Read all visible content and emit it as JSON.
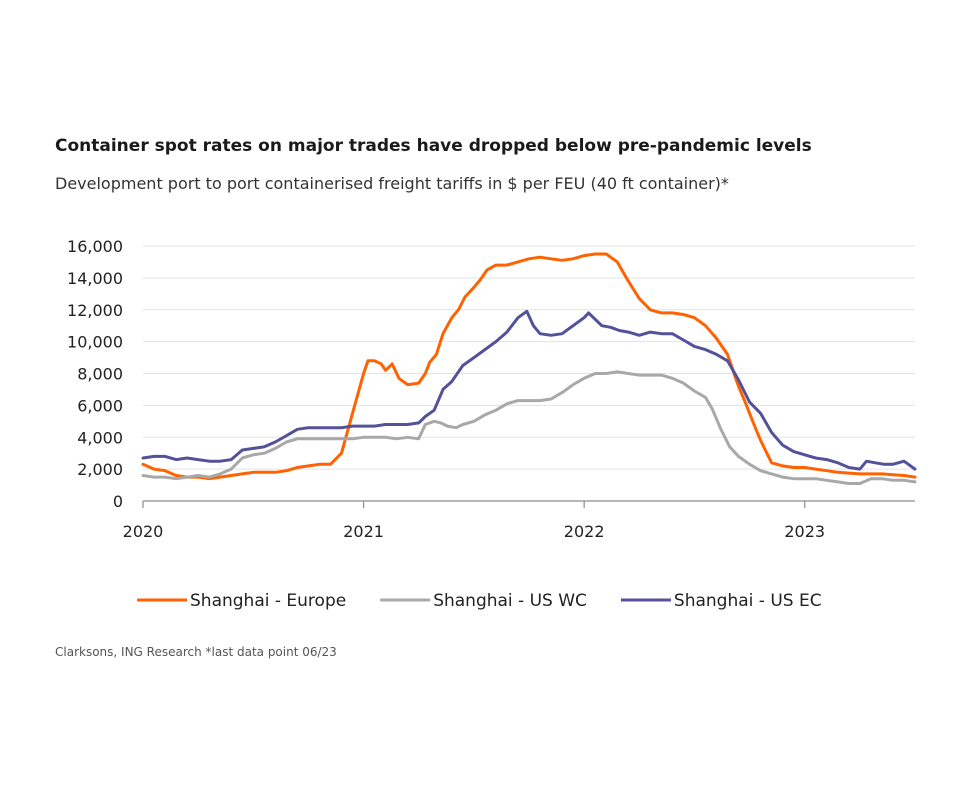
{
  "chart_data": {
    "type": "line",
    "title": "Container spot rates on major trades have dropped below pre-pandemic levels",
    "subtitle": "Development port to port containerised freight tariffs in $ per FEU (40 ft container)*",
    "source": "Clarksons, ING Research *last data point 06/23",
    "xlabel": "",
    "ylabel": "",
    "xlim": [
      2020.0,
      2023.5
    ],
    "ylim": [
      0,
      16000
    ],
    "x_ticks": [
      2020,
      2021,
      2022,
      2023
    ],
    "y_ticks": [
      0,
      2000,
      4000,
      6000,
      8000,
      10000,
      12000,
      14000,
      16000
    ],
    "y_tick_labels": [
      "0",
      "2,000",
      "4,000",
      "6,000",
      "8,000",
      "10,000",
      "12,000",
      "14,000",
      "16,000"
    ],
    "grid": "horizontal",
    "legend_position": "bottom",
    "series": [
      {
        "name": "Shanghai - Europe",
        "color": "#ff6200",
        "points": [
          [
            2020.0,
            2300
          ],
          [
            2020.05,
            2000
          ],
          [
            2020.1,
            1900
          ],
          [
            2020.15,
            1600
          ],
          [
            2020.2,
            1500
          ],
          [
            2020.25,
            1500
          ],
          [
            2020.3,
            1400
          ],
          [
            2020.35,
            1500
          ],
          [
            2020.4,
            1600
          ],
          [
            2020.45,
            1700
          ],
          [
            2020.5,
            1800
          ],
          [
            2020.55,
            1800
          ],
          [
            2020.6,
            1800
          ],
          [
            2020.65,
            1900
          ],
          [
            2020.7,
            2100
          ],
          [
            2020.75,
            2200
          ],
          [
            2020.8,
            2300
          ],
          [
            2020.85,
            2300
          ],
          [
            2020.9,
            3000
          ],
          [
            2020.93,
            4500
          ],
          [
            2020.96,
            6000
          ],
          [
            2020.98,
            7000
          ],
          [
            2021.0,
            8000
          ],
          [
            2021.02,
            8800
          ],
          [
            2021.05,
            8800
          ],
          [
            2021.08,
            8600
          ],
          [
            2021.1,
            8200
          ],
          [
            2021.13,
            8600
          ],
          [
            2021.16,
            7700
          ],
          [
            2021.2,
            7300
          ],
          [
            2021.25,
            7400
          ],
          [
            2021.28,
            8000
          ],
          [
            2021.3,
            8700
          ],
          [
            2021.33,
            9200
          ],
          [
            2021.36,
            10500
          ],
          [
            2021.4,
            11500
          ],
          [
            2021.43,
            12000
          ],
          [
            2021.46,
            12800
          ],
          [
            2021.5,
            13400
          ],
          [
            2021.53,
            13900
          ],
          [
            2021.56,
            14500
          ],
          [
            2021.6,
            14800
          ],
          [
            2021.65,
            14800
          ],
          [
            2021.7,
            15000
          ],
          [
            2021.75,
            15200
          ],
          [
            2021.8,
            15300
          ],
          [
            2021.85,
            15200
          ],
          [
            2021.9,
            15100
          ],
          [
            2021.95,
            15200
          ],
          [
            2022.0,
            15400
          ],
          [
            2022.05,
            15500
          ],
          [
            2022.1,
            15500
          ],
          [
            2022.15,
            15000
          ],
          [
            2022.2,
            13800
          ],
          [
            2022.25,
            12700
          ],
          [
            2022.3,
            12000
          ],
          [
            2022.35,
            11800
          ],
          [
            2022.4,
            11800
          ],
          [
            2022.45,
            11700
          ],
          [
            2022.5,
            11500
          ],
          [
            2022.55,
            11000
          ],
          [
            2022.6,
            10200
          ],
          [
            2022.65,
            9200
          ],
          [
            2022.7,
            7200
          ],
          [
            2022.73,
            6200
          ],
          [
            2022.77,
            4800
          ],
          [
            2022.8,
            3800
          ],
          [
            2022.85,
            2400
          ],
          [
            2022.9,
            2200
          ],
          [
            2022.95,
            2100
          ],
          [
            2023.0,
            2100
          ],
          [
            2023.05,
            2000
          ],
          [
            2023.1,
            1900
          ],
          [
            2023.15,
            1800
          ],
          [
            2023.2,
            1750
          ],
          [
            2023.25,
            1700
          ],
          [
            2023.3,
            1700
          ],
          [
            2023.35,
            1700
          ],
          [
            2023.4,
            1650
          ],
          [
            2023.45,
            1600
          ],
          [
            2023.5,
            1500
          ]
        ]
      },
      {
        "name": "Shanghai - US WC",
        "color": "#a8a8a8",
        "points": [
          [
            2020.0,
            1600
          ],
          [
            2020.05,
            1500
          ],
          [
            2020.1,
            1500
          ],
          [
            2020.15,
            1400
          ],
          [
            2020.2,
            1500
          ],
          [
            2020.25,
            1600
          ],
          [
            2020.3,
            1500
          ],
          [
            2020.35,
            1700
          ],
          [
            2020.4,
            2000
          ],
          [
            2020.45,
            2700
          ],
          [
            2020.5,
            2900
          ],
          [
            2020.55,
            3000
          ],
          [
            2020.6,
            3300
          ],
          [
            2020.65,
            3700
          ],
          [
            2020.7,
            3900
          ],
          [
            2020.75,
            3900
          ],
          [
            2020.8,
            3900
          ],
          [
            2020.85,
            3900
          ],
          [
            2020.9,
            3900
          ],
          [
            2020.95,
            3900
          ],
          [
            2021.0,
            4000
          ],
          [
            2021.05,
            4000
          ],
          [
            2021.1,
            4000
          ],
          [
            2021.15,
            3900
          ],
          [
            2021.2,
            4000
          ],
          [
            2021.25,
            3900
          ],
          [
            2021.28,
            4800
          ],
          [
            2021.32,
            5000
          ],
          [
            2021.35,
            4900
          ],
          [
            2021.38,
            4700
          ],
          [
            2021.42,
            4600
          ],
          [
            2021.45,
            4800
          ],
          [
            2021.5,
            5000
          ],
          [
            2021.55,
            5400
          ],
          [
            2021.6,
            5700
          ],
          [
            2021.65,
            6100
          ],
          [
            2021.7,
            6300
          ],
          [
            2021.75,
            6300
          ],
          [
            2021.8,
            6300
          ],
          [
            2021.85,
            6400
          ],
          [
            2021.9,
            6800
          ],
          [
            2021.95,
            7300
          ],
          [
            2022.0,
            7700
          ],
          [
            2022.05,
            8000
          ],
          [
            2022.1,
            8000
          ],
          [
            2022.15,
            8100
          ],
          [
            2022.2,
            8000
          ],
          [
            2022.25,
            7900
          ],
          [
            2022.3,
            7900
          ],
          [
            2022.35,
            7900
          ],
          [
            2022.4,
            7700
          ],
          [
            2022.45,
            7400
          ],
          [
            2022.5,
            6900
          ],
          [
            2022.55,
            6500
          ],
          [
            2022.58,
            5800
          ],
          [
            2022.62,
            4500
          ],
          [
            2022.66,
            3400
          ],
          [
            2022.7,
            2800
          ],
          [
            2022.75,
            2300
          ],
          [
            2022.8,
            1900
          ],
          [
            2022.85,
            1700
          ],
          [
            2022.9,
            1500
          ],
          [
            2022.95,
            1400
          ],
          [
            2023.0,
            1400
          ],
          [
            2023.05,
            1400
          ],
          [
            2023.1,
            1300
          ],
          [
            2023.15,
            1200
          ],
          [
            2023.2,
            1100
          ],
          [
            2023.25,
            1100
          ],
          [
            2023.3,
            1400
          ],
          [
            2023.35,
            1400
          ],
          [
            2023.4,
            1300
          ],
          [
            2023.45,
            1300
          ],
          [
            2023.5,
            1200
          ]
        ]
      },
      {
        "name": "Shanghai - US EC",
        "color": "#525199",
        "points": [
          [
            2020.0,
            2700
          ],
          [
            2020.05,
            2800
          ],
          [
            2020.1,
            2800
          ],
          [
            2020.15,
            2600
          ],
          [
            2020.2,
            2700
          ],
          [
            2020.25,
            2600
          ],
          [
            2020.3,
            2500
          ],
          [
            2020.35,
            2500
          ],
          [
            2020.4,
            2600
          ],
          [
            2020.45,
            3200
          ],
          [
            2020.5,
            3300
          ],
          [
            2020.55,
            3400
          ],
          [
            2020.6,
            3700
          ],
          [
            2020.65,
            4100
          ],
          [
            2020.7,
            4500
          ],
          [
            2020.75,
            4600
          ],
          [
            2020.8,
            4600
          ],
          [
            2020.85,
            4600
          ],
          [
            2020.9,
            4600
          ],
          [
            2020.95,
            4700
          ],
          [
            2021.0,
            4700
          ],
          [
            2021.05,
            4700
          ],
          [
            2021.1,
            4800
          ],
          [
            2021.15,
            4800
          ],
          [
            2021.2,
            4800
          ],
          [
            2021.25,
            4900
          ],
          [
            2021.28,
            5300
          ],
          [
            2021.32,
            5700
          ],
          [
            2021.36,
            7000
          ],
          [
            2021.4,
            7500
          ],
          [
            2021.45,
            8500
          ],
          [
            2021.5,
            9000
          ],
          [
            2021.55,
            9500
          ],
          [
            2021.6,
            10000
          ],
          [
            2021.65,
            10600
          ],
          [
            2021.7,
            11500
          ],
          [
            2021.74,
            11900
          ],
          [
            2021.77,
            11000
          ],
          [
            2021.8,
            10500
          ],
          [
            2021.85,
            10400
          ],
          [
            2021.9,
            10500
          ],
          [
            2021.95,
            11000
          ],
          [
            2022.0,
            11500
          ],
          [
            2022.02,
            11800
          ],
          [
            2022.05,
            11400
          ],
          [
            2022.08,
            11000
          ],
          [
            2022.12,
            10900
          ],
          [
            2022.16,
            10700
          ],
          [
            2022.2,
            10600
          ],
          [
            2022.25,
            10400
          ],
          [
            2022.3,
            10600
          ],
          [
            2022.35,
            10500
          ],
          [
            2022.4,
            10500
          ],
          [
            2022.45,
            10100
          ],
          [
            2022.5,
            9700
          ],
          [
            2022.55,
            9500
          ],
          [
            2022.6,
            9200
          ],
          [
            2022.65,
            8800
          ],
          [
            2022.7,
            7600
          ],
          [
            2022.75,
            6200
          ],
          [
            2022.8,
            5500
          ],
          [
            2022.85,
            4300
          ],
          [
            2022.9,
            3500
          ],
          [
            2022.95,
            3100
          ],
          [
            2023.0,
            2900
          ],
          [
            2023.05,
            2700
          ],
          [
            2023.1,
            2600
          ],
          [
            2023.15,
            2400
          ],
          [
            2023.2,
            2100
          ],
          [
            2023.25,
            2000
          ],
          [
            2023.28,
            2500
          ],
          [
            2023.32,
            2400
          ],
          [
            2023.36,
            2300
          ],
          [
            2023.4,
            2300
          ],
          [
            2023.45,
            2500
          ],
          [
            2023.5,
            2000
          ]
        ]
      }
    ]
  }
}
